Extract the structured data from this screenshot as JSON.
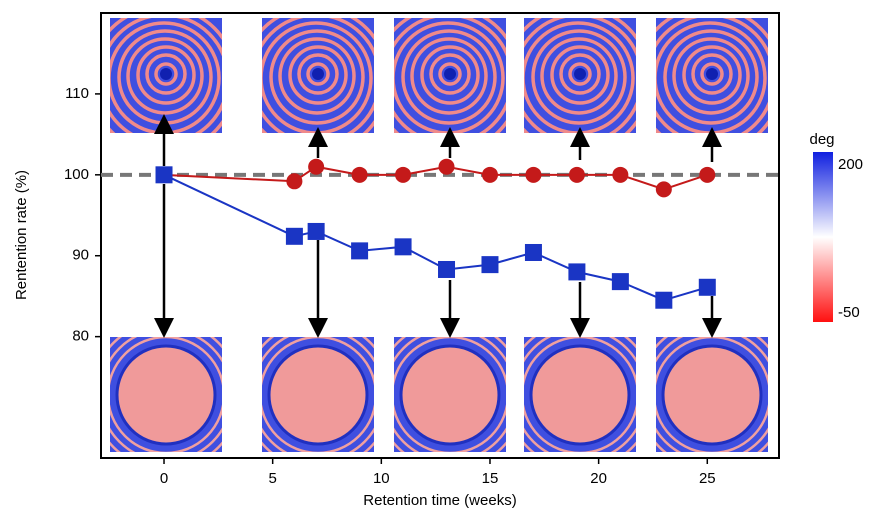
{
  "chart_data": {
    "type": "line",
    "x_label": "Retention time (weeks)",
    "y_label": "Rentention rate (%)",
    "xlim": [
      -2.9,
      28.3
    ],
    "xticks": [
      0,
      5,
      10,
      15,
      20,
      25
    ],
    "ylim": [
      65,
      120
    ],
    "yticks": [
      80,
      90,
      100,
      110
    ],
    "reference_line": 100,
    "series": [
      {
        "color": "#c41a1a",
        "marker": "circle",
        "x": [
          0,
          6,
          7,
          9,
          11,
          13,
          15,
          17,
          19,
          21,
          23,
          25
        ],
        "values": [
          100,
          99.2,
          101,
          100,
          100,
          101,
          100,
          100,
          100,
          100,
          98.2,
          100
        ]
      },
      {
        "color": "#1a35c4",
        "marker": "square",
        "x": [
          0,
          6,
          7,
          9,
          11,
          13,
          15,
          17,
          19,
          21,
          23,
          25
        ],
        "values": [
          100,
          92.4,
          93,
          90.6,
          91.1,
          88.3,
          88.9,
          90.4,
          88,
          86.8,
          84.5,
          86.1
        ]
      }
    ],
    "colorbar": {
      "label": "deg",
      "clim": [
        -65,
        222
      ],
      "ticks": [
        200,
        -50
      ]
    }
  }
}
